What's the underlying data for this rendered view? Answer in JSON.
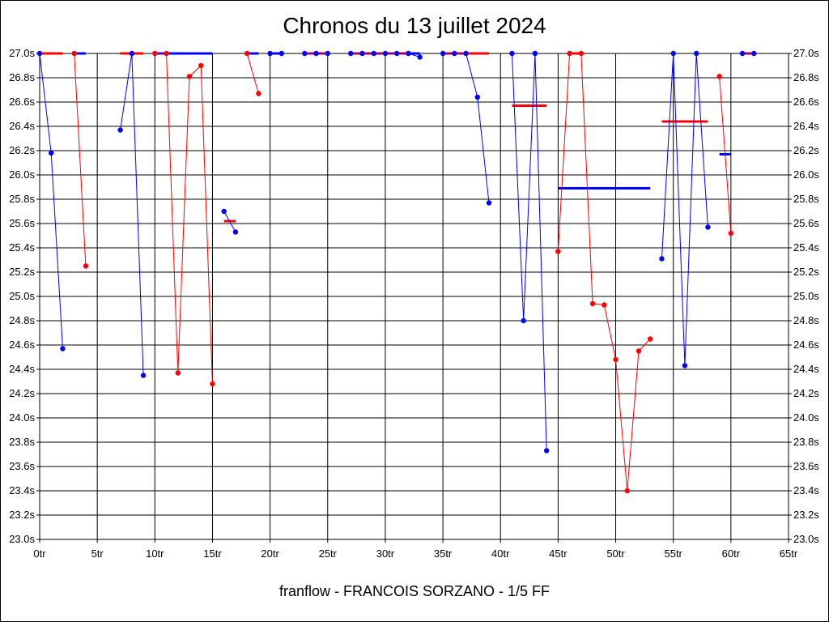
{
  "title": "Chronos du 13 juillet 2024",
  "footer": "franflow - FRANCOIS SORZANO - 1/5 FF",
  "chart_data": {
    "type": "line",
    "xlim": [
      0,
      65
    ],
    "ylim": [
      23.0,
      27.0
    ],
    "x_ticks": [
      0,
      5,
      10,
      15,
      20,
      25,
      30,
      35,
      40,
      45,
      50,
      55,
      60,
      65
    ],
    "x_tick_labels": [
      "0tr",
      "5tr",
      "10tr",
      "15tr",
      "20tr",
      "25tr",
      "30tr",
      "35tr",
      "40tr",
      "45tr",
      "50tr",
      "55tr",
      "60tr",
      "65tr"
    ],
    "y_ticks": [
      23.0,
      23.2,
      23.4,
      23.6,
      23.8,
      24.0,
      24.2,
      24.4,
      24.6,
      24.8,
      25.0,
      25.2,
      25.4,
      25.6,
      25.8,
      26.0,
      26.2,
      26.4,
      26.6,
      26.8,
      27.0
    ],
    "y_tick_labels": [
      "23.0s",
      "23.2s",
      "23.4s",
      "23.6s",
      "23.8s",
      "24.0s",
      "24.2s",
      "24.4s",
      "24.6s",
      "24.8s",
      "25.0s",
      "25.2s",
      "25.4s",
      "25.6s",
      "25.8s",
      "26.0s",
      "26.2s",
      "26.4s",
      "26.6s",
      "26.8s",
      "27.0s"
    ],
    "grid": true,
    "y_axis_both_sides": true,
    "series_colors": {
      "red": "#ff0000",
      "blue": "#0000ff"
    },
    "segments": [
      {
        "color": "blue",
        "points": [
          [
            0,
            27.0
          ],
          [
            1,
            26.18
          ],
          [
            2,
            24.57
          ]
        ],
        "mean": 27.0,
        "mean_range": [
          0,
          1
        ]
      },
      {
        "color": "red",
        "points": [
          [
            3,
            27.0
          ],
          [
            4,
            25.25
          ]
        ],
        "mean": 27.0,
        "mean_range": [
          0,
          2
        ]
      },
      {
        "color": "blue",
        "points": [],
        "mean": 27.0,
        "mean_range": [
          3,
          4
        ]
      },
      {
        "color": "blue",
        "points": [
          [
            7,
            26.37
          ],
          [
            8,
            27.0
          ],
          [
            9,
            24.35
          ]
        ],
        "mean": 27.0,
        "mean_range": [
          7,
          9
        ]
      },
      {
        "color": "red",
        "points": [],
        "mean": 27.0,
        "mean_range": [
          7,
          9
        ]
      },
      {
        "color": "red",
        "points": [
          [
            10,
            27.0
          ],
          [
            11,
            27.0
          ],
          [
            12,
            24.37
          ],
          [
            13,
            26.81
          ],
          [
            14,
            26.9
          ],
          [
            15,
            24.28
          ]
        ],
        "mean": 27.0,
        "mean_range": [
          10,
          11
        ]
      },
      {
        "color": "blue",
        "points": [],
        "mean": 27.0,
        "mean_range": [
          10,
          15
        ]
      },
      {
        "color": "blue",
        "points": [
          [
            16,
            25.7
          ],
          [
            17,
            25.53
          ]
        ],
        "mean": null
      },
      {
        "color": "red",
        "points": [],
        "mean": 25.62,
        "mean_range": [
          16,
          17
        ]
      },
      {
        "color": "red",
        "points": [
          [
            18,
            27.0
          ],
          [
            19,
            26.67
          ]
        ],
        "mean": null
      },
      {
        "color": "blue",
        "points": [],
        "mean": 27.0,
        "mean_range": [
          18,
          19
        ]
      },
      {
        "color": "blue",
        "points": [
          [
            20,
            27.0
          ],
          [
            21,
            27.0
          ]
        ],
        "mean": 27.0,
        "mean_range": [
          20,
          21
        ]
      },
      {
        "color": "blue",
        "points": [
          [
            23,
            27.0
          ],
          [
            24,
            27.0
          ],
          [
            25,
            27.0
          ]
        ],
        "mean": null
      },
      {
        "color": "red",
        "points": [],
        "mean": 27.0,
        "mean_range": [
          23,
          25
        ]
      },
      {
        "color": "blue",
        "points": [
          [
            27,
            27.0
          ],
          [
            28,
            27.0
          ],
          [
            29,
            27.0
          ],
          [
            30,
            27.0
          ],
          [
            31,
            27.0
          ],
          [
            32,
            27.0
          ],
          [
            33,
            26.97
          ]
        ],
        "mean": 27.0,
        "mean_range": [
          27,
          33
        ]
      },
      {
        "color": "red",
        "points": [],
        "mean": 27.0,
        "mean_range": [
          27,
          32
        ]
      },
      {
        "color": "blue",
        "points": [
          [
            35,
            27.0
          ],
          [
            36,
            27.0
          ],
          [
            37,
            27.0
          ],
          [
            38,
            26.64
          ],
          [
            39,
            25.77
          ]
        ],
        "mean": 27.0,
        "mean_range": [
          35,
          37
        ]
      },
      {
        "color": "red",
        "points": [],
        "mean": 27.0,
        "mean_range": [
          35,
          39
        ]
      },
      {
        "color": "blue",
        "points": [
          [
            41,
            27.0
          ],
          [
            42,
            24.8
          ],
          [
            43,
            27.0
          ],
          [
            44,
            23.73
          ]
        ],
        "mean": null
      },
      {
        "color": "red",
        "points": [],
        "mean": 26.57,
        "mean_range": [
          41,
          44
        ]
      },
      {
        "color": "red",
        "points": [
          [
            45,
            25.37
          ],
          [
            46,
            27.0
          ],
          [
            47,
            27.0
          ],
          [
            48,
            24.94
          ],
          [
            49,
            24.93
          ],
          [
            50,
            24.48
          ],
          [
            51,
            23.4
          ],
          [
            52,
            24.55
          ],
          [
            53,
            24.65
          ]
        ],
        "mean": 27.0,
        "mean_range": [
          46,
          47
        ]
      },
      {
        "color": "blue",
        "points": [],
        "mean": 25.89,
        "mean_range": [
          45,
          53
        ]
      },
      {
        "color": "blue",
        "points": [
          [
            54,
            25.31
          ],
          [
            55,
            27.0
          ],
          [
            56,
            24.43
          ],
          [
            57,
            27.0
          ],
          [
            58,
            25.57
          ]
        ],
        "mean": null
      },
      {
        "color": "red",
        "points": [],
        "mean": 26.44,
        "mean_range": [
          54,
          58
        ]
      },
      {
        "color": "red",
        "points": [
          [
            59,
            26.81
          ],
          [
            60,
            25.52
          ]
        ],
        "mean": null
      },
      {
        "color": "blue",
        "points": [],
        "mean": 26.17,
        "mean_range": [
          59,
          60
        ]
      },
      {
        "color": "blue",
        "points": [
          [
            61,
            27.0
          ],
          [
            62,
            27.0
          ]
        ],
        "mean": null
      },
      {
        "color": "red",
        "points": [],
        "mean": 27.0,
        "mean_range": [
          61,
          62
        ]
      }
    ]
  }
}
